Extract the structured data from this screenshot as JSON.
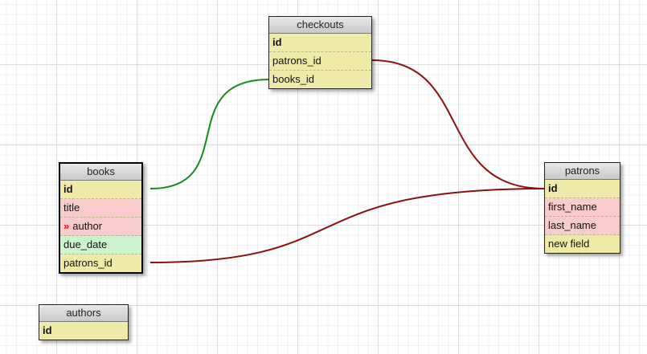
{
  "colors": {
    "link_green": "#1a8a1a",
    "link_red": "#8b0f0f",
    "field_yellow": "#efeaa8",
    "field_pink": "#f8cccc",
    "field_green": "#ccf5cc"
  },
  "tables": {
    "checkouts": {
      "title": "checkouts",
      "fields": [
        {
          "name": "id",
          "primary": true,
          "style": "yellow"
        },
        {
          "name": "patrons_id",
          "style": "yellow"
        },
        {
          "name": "books_id",
          "style": "yellow"
        }
      ]
    },
    "books": {
      "title": "books",
      "fields": [
        {
          "name": "id",
          "primary": true,
          "style": "yellow"
        },
        {
          "name": "title",
          "style": "pink"
        },
        {
          "name": "author",
          "style": "pink",
          "fk_icon": "»"
        },
        {
          "name": "due_date",
          "style": "green"
        },
        {
          "name": "patrons_id",
          "style": "yellow"
        }
      ]
    },
    "patrons": {
      "title": "patrons",
      "fields": [
        {
          "name": "id",
          "primary": true,
          "style": "yellow"
        },
        {
          "name": "first_name",
          "style": "pink"
        },
        {
          "name": "last_name",
          "style": "pink"
        },
        {
          "name": "new field",
          "style": "yellow"
        }
      ]
    },
    "authors": {
      "title": "authors",
      "fields": [
        {
          "name": "id",
          "primary": true,
          "style": "yellow"
        }
      ]
    }
  },
  "relations": [
    {
      "from": "books.id",
      "to": "checkouts.books_id",
      "color": "green"
    },
    {
      "from": "checkouts.patrons_id",
      "to": "patrons.id",
      "color": "red"
    },
    {
      "from": "books.patrons_id",
      "to": "patrons.id",
      "color": "red"
    }
  ]
}
